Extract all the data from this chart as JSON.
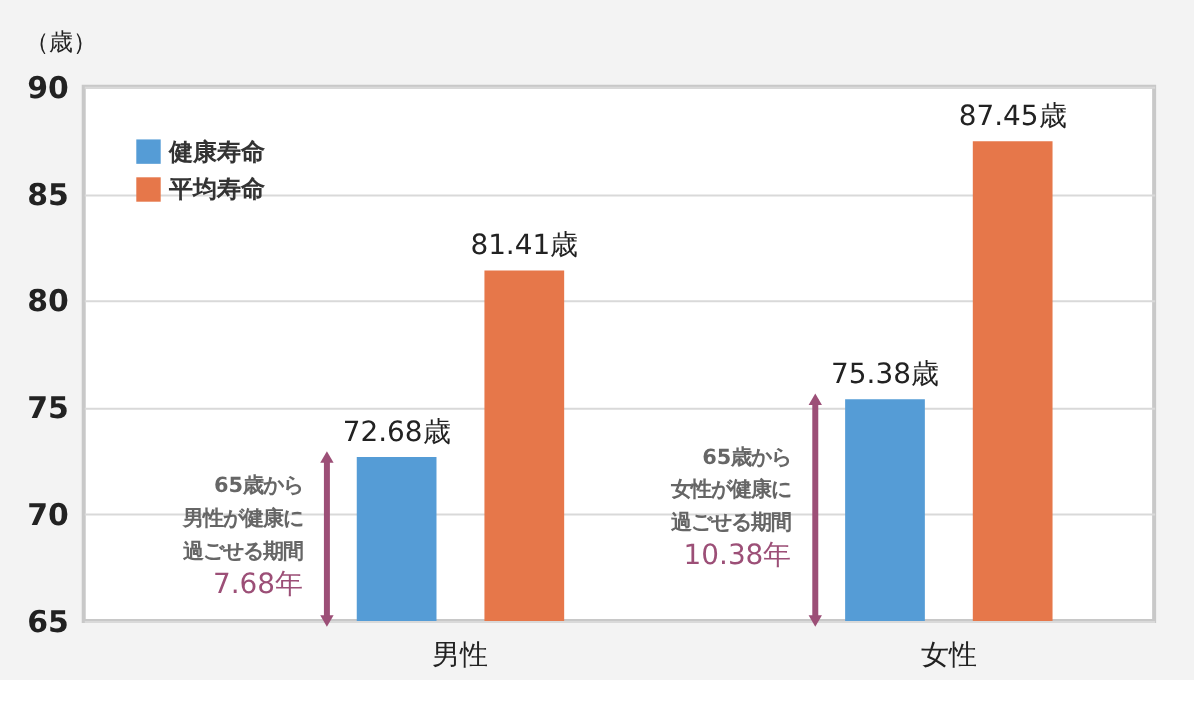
{
  "chart_data": {
    "type": "bar",
    "ylabel": "（歳）",
    "categories": [
      "男性",
      "女性"
    ],
    "series": [
      {
        "name": "健康寿命",
        "color": "#559cd6",
        "values": [
          72.68,
          75.38
        ],
        "value_labels": [
          "72.68歳",
          "75.38歳"
        ]
      },
      {
        "name": "平均寿命",
        "color": "#e6774a",
        "values": [
          81.41,
          87.45
        ],
        "value_labels": [
          "81.41歳",
          "87.45歳"
        ]
      }
    ],
    "ylim": [
      65,
      90
    ],
    "yticks": [
      65,
      70,
      75,
      80,
      85,
      90
    ],
    "grid": "y",
    "legend": "top left",
    "annotations": [
      "65歳から",
      "男性が健康に",
      "過ごせる期間",
      "7.68年",
      "65歳から",
      "女性が健康に",
      "過ごせる期間",
      "10.38年"
    ]
  }
}
